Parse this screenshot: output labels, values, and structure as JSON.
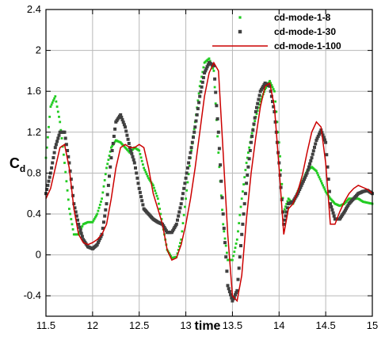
{
  "chart_data": {
    "type": "line",
    "title": "",
    "xlabel": "time",
    "ylabel": "C",
    "ylabel_subscript": "d",
    "xlim": [
      11.5,
      15
    ],
    "ylim": [
      -0.6,
      2.4
    ],
    "grid": true,
    "legend_position": "top-right",
    "x_ticks": [
      11.5,
      12,
      12.5,
      13,
      13.5,
      14,
      14.5,
      15
    ],
    "x_tick_labels": [
      "11.5",
      "12",
      "12.5",
      "13",
      "13.5",
      "14",
      "14.5",
      "15"
    ],
    "y_ticks": [
      -0.4,
      0,
      0.4,
      0.8,
      1.2,
      1.6,
      2,
      2.4
    ],
    "y_tick_labels": [
      "-0.4",
      "0",
      "0.4",
      "0.8",
      "1.2",
      "1.6",
      "2",
      "2.4"
    ],
    "series": [
      {
        "name": "cd-mode-1-8",
        "style": "markers",
        "color": "#22cc22",
        "x": [
          11.5,
          11.55,
          11.6,
          11.65,
          11.7,
          11.75,
          11.8,
          11.85,
          11.9,
          11.95,
          12.0,
          12.05,
          12.1,
          12.15,
          12.2,
          12.25,
          12.3,
          12.35,
          12.4,
          12.45,
          12.5,
          12.55,
          12.6,
          12.65,
          12.7,
          12.75,
          12.8,
          12.85,
          12.9,
          12.95,
          13.0,
          13.05,
          13.1,
          13.15,
          13.2,
          13.25,
          13.3,
          13.35,
          13.4,
          13.45,
          13.5,
          13.55,
          13.6,
          13.65,
          13.7,
          13.75,
          13.8,
          13.85,
          13.9,
          13.95,
          14.0,
          14.05,
          14.1,
          14.15,
          14.2,
          14.25,
          14.3,
          14.35,
          14.4,
          14.45,
          14.5,
          14.55,
          14.6,
          14.65,
          14.7,
          14.75,
          14.8,
          14.85,
          14.9,
          14.95,
          15.0
        ],
        "y": [
          0.95,
          1.45,
          1.55,
          1.3,
          0.9,
          0.45,
          0.2,
          0.2,
          0.3,
          0.32,
          0.32,
          0.4,
          0.55,
          0.85,
          1.05,
          1.12,
          1.1,
          1.05,
          1.0,
          1.05,
          1.02,
          0.85,
          0.75,
          0.68,
          0.55,
          0.3,
          0.05,
          -0.03,
          -0.02,
          0.15,
          0.55,
          0.95,
          1.3,
          1.65,
          1.88,
          1.92,
          1.8,
          1.0,
          0.3,
          -0.05,
          -0.05,
          0.15,
          0.55,
          0.9,
          1.15,
          1.35,
          1.5,
          1.62,
          1.7,
          1.6,
          1.1,
          0.42,
          0.55,
          0.5,
          0.62,
          0.72,
          0.82,
          0.86,
          0.82,
          0.72,
          0.62,
          0.55,
          0.5,
          0.48,
          0.5,
          0.55,
          0.55,
          0.55,
          0.52,
          0.51,
          0.5
        ]
      },
      {
        "name": "cd-mode-1-30",
        "style": "markers",
        "color": "#404040",
        "x": [
          11.5,
          11.55,
          11.6,
          11.65,
          11.7,
          11.75,
          11.8,
          11.85,
          11.9,
          11.95,
          12.0,
          12.05,
          12.1,
          12.15,
          12.2,
          12.25,
          12.3,
          12.35,
          12.4,
          12.45,
          12.5,
          12.55,
          12.6,
          12.65,
          12.7,
          12.75,
          12.8,
          12.85,
          12.9,
          12.95,
          13.0,
          13.05,
          13.1,
          13.15,
          13.2,
          13.25,
          13.3,
          13.35,
          13.4,
          13.45,
          13.5,
          13.55,
          13.6,
          13.65,
          13.7,
          13.75,
          13.8,
          13.85,
          13.9,
          13.95,
          14.0,
          14.05,
          14.1,
          14.15,
          14.2,
          14.25,
          14.3,
          14.35,
          14.4,
          14.45,
          14.5,
          14.55,
          14.6,
          14.65,
          14.7,
          14.75,
          14.8,
          14.85,
          14.9,
          14.95,
          15.0
        ],
        "y": [
          0.6,
          0.8,
          1.05,
          1.2,
          1.2,
          0.9,
          0.5,
          0.3,
          0.15,
          0.08,
          0.06,
          0.1,
          0.2,
          0.5,
          0.95,
          1.3,
          1.37,
          1.25,
          1.05,
          0.9,
          0.65,
          0.45,
          0.4,
          0.35,
          0.32,
          0.3,
          0.22,
          0.22,
          0.3,
          0.5,
          0.75,
          1.0,
          1.25,
          1.55,
          1.78,
          1.88,
          1.85,
          1.2,
          0.4,
          -0.3,
          -0.45,
          -0.35,
          0.2,
          0.7,
          1.1,
          1.4,
          1.6,
          1.68,
          1.65,
          1.4,
          0.9,
          0.3,
          0.5,
          0.52,
          0.6,
          0.7,
          0.8,
          0.95,
          1.12,
          1.22,
          1.1,
          0.5,
          0.35,
          0.35,
          0.42,
          0.5,
          0.55,
          0.6,
          0.62,
          0.63,
          0.6
        ]
      },
      {
        "name": "cd-mode-1-100",
        "style": "line",
        "color": "#cc0000",
        "x": [
          11.5,
          11.55,
          11.6,
          11.65,
          11.7,
          11.75,
          11.8,
          11.85,
          11.9,
          11.95,
          12.0,
          12.05,
          12.1,
          12.15,
          12.2,
          12.25,
          12.3,
          12.35,
          12.4,
          12.45,
          12.5,
          12.55,
          12.6,
          12.65,
          12.7,
          12.75,
          12.8,
          12.85,
          12.9,
          12.95,
          13.0,
          13.05,
          13.1,
          13.15,
          13.2,
          13.25,
          13.3,
          13.35,
          13.4,
          13.45,
          13.5,
          13.55,
          13.6,
          13.65,
          13.7,
          13.75,
          13.8,
          13.85,
          13.9,
          13.95,
          14.0,
          14.05,
          14.1,
          14.15,
          14.2,
          14.25,
          14.3,
          14.35,
          14.4,
          14.45,
          14.5,
          14.55,
          14.6,
          14.65,
          14.7,
          14.75,
          14.8,
          14.85,
          14.9,
          14.95,
          15.0
        ],
        "y": [
          0.55,
          0.65,
          0.85,
          1.05,
          1.08,
          0.85,
          0.45,
          0.2,
          0.12,
          0.1,
          0.12,
          0.15,
          0.2,
          0.3,
          0.55,
          0.85,
          1.05,
          1.08,
          1.05,
          1.05,
          1.08,
          1.05,
          0.85,
          0.6,
          0.45,
          0.3,
          0.05,
          -0.05,
          -0.03,
          0.1,
          0.3,
          0.55,
          0.85,
          1.2,
          1.55,
          1.78,
          1.88,
          1.8,
          1.0,
          0.2,
          -0.4,
          -0.45,
          -0.2,
          0.35,
          0.8,
          1.15,
          1.45,
          1.65,
          1.68,
          1.45,
          0.85,
          0.2,
          0.45,
          0.5,
          0.62,
          0.78,
          1.0,
          1.2,
          1.3,
          1.25,
          0.9,
          0.3,
          0.3,
          0.42,
          0.52,
          0.6,
          0.65,
          0.68,
          0.66,
          0.64,
          0.6
        ]
      }
    ]
  }
}
